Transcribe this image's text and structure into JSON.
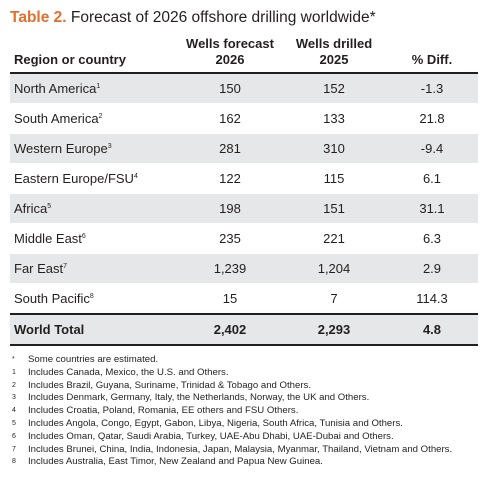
{
  "title": {
    "label": "Table 2.",
    "text": "Forecast of 2026 offshore drilling worldwide*"
  },
  "columns": [
    {
      "line1": "",
      "line2": "Region or country"
    },
    {
      "line1": "Wells forecast",
      "line2": "2026"
    },
    {
      "line1": "Wells drilled",
      "line2": "2025"
    },
    {
      "line1": "",
      "line2": "% Diff."
    }
  ],
  "rows": [
    {
      "region": "North America",
      "note": "1",
      "forecast": "150",
      "drilled": "152",
      "diff": "-1.3"
    },
    {
      "region": "South America",
      "note": "2",
      "forecast": "162",
      "drilled": "133",
      "diff": "21.8"
    },
    {
      "region": "Western Europe",
      "note": "3",
      "forecast": "281",
      "drilled": "310",
      "diff": "-9.4"
    },
    {
      "region": "Eastern Europe/FSU",
      "note": "4",
      "forecast": "122",
      "drilled": "115",
      "diff": "6.1"
    },
    {
      "region": "Africa",
      "note": "5",
      "forecast": "198",
      "drilled": "151",
      "diff": "31.1"
    },
    {
      "region": "Middle East",
      "note": "6",
      "forecast": "235",
      "drilled": "221",
      "diff": "6.3"
    },
    {
      "region": "Far East",
      "note": "7",
      "forecast": "1,239",
      "drilled": "1,204",
      "diff": "2.9"
    },
    {
      "region": "South Pacific",
      "note": "8",
      "forecast": "15",
      "drilled": "7",
      "diff": "114.3"
    }
  ],
  "total": {
    "region": "World Total",
    "forecast": "2,402",
    "drilled": "2,293",
    "diff": "4.8"
  },
  "footnotes": [
    {
      "mark": "*",
      "text": "Some countries are estimated."
    },
    {
      "mark": "1",
      "text": "Includes Canada, Mexico, the U.S. and Others."
    },
    {
      "mark": "2",
      "text": "Includes Brazil, Guyana, Suriname, Trinidad & Tobago and Others."
    },
    {
      "mark": "3",
      "text": "Includes Denmark, Germany, Italy, the Netherlands, Norway, the UK and Others."
    },
    {
      "mark": "4",
      "text": "Includes Croatia, Poland, Romania, EE others and FSU Others."
    },
    {
      "mark": "5",
      "text": "Includes Angola, Congo, Egypt, Gabon, Libya, Nigeria, South Africa, Tunisia and Others."
    },
    {
      "mark": "6",
      "text": "Includes Oman, Qatar, Saudi Arabia, Turkey, UAE-Abu Dhabi, UAE-Dubai and Others."
    },
    {
      "mark": "7",
      "text": "Includes Brunei, China, India, Indonesia, Japan, Malaysia, Myanmar, Thailand, Vietnam and Others."
    },
    {
      "mark": "8",
      "text": "Includes Australia, East Timor, New Zealand and Papua New Guinea."
    }
  ],
  "colors": {
    "accent": "#e36f2c",
    "stripe": "#e6e7e8",
    "text": "#231f20"
  }
}
